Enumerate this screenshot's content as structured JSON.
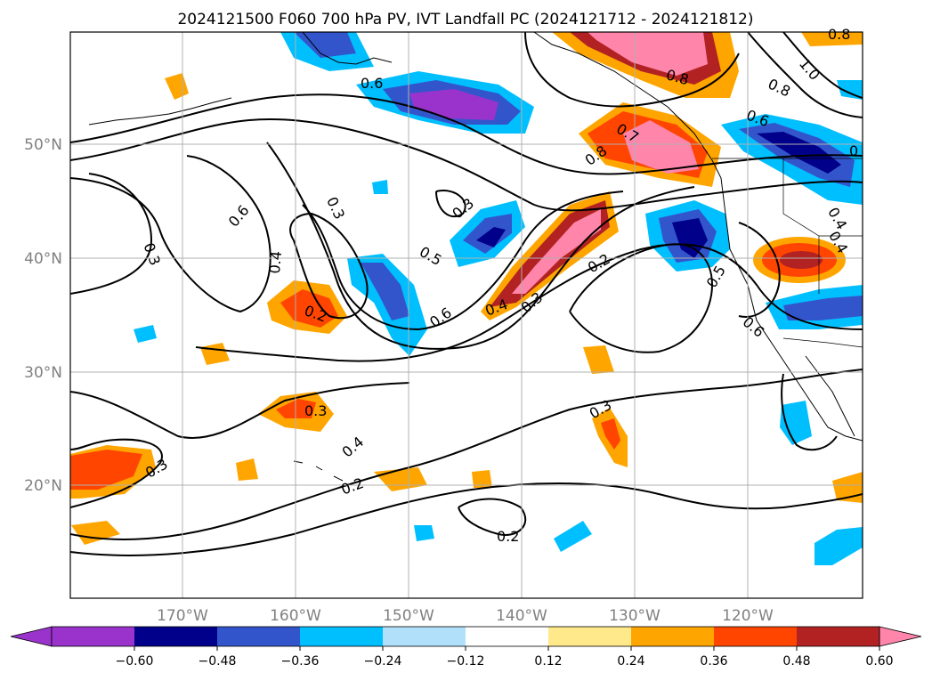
{
  "title": "2024121500 F060 700 hPa PV, IVT Landfall PC (2024121712 - 2024121812)",
  "map": {
    "lat_labels": [
      "50°N",
      "40°N",
      "30°N",
      "20°N"
    ],
    "lon_labels": [
      "170°W",
      "160°W",
      "150°W",
      "140°W",
      "130°W",
      "120°W"
    ]
  },
  "colorbar": {
    "tick_labels": [
      "−0.60",
      "−0.48",
      "−0.36",
      "−0.24",
      "−0.12",
      "0.12",
      "0.24",
      "0.36",
      "0.48",
      "0.60"
    ],
    "colors": [
      "#9933cc",
      "#00008b",
      "#3355cc",
      "#00bfff",
      "#b0e0fa",
      "#ffffff",
      "#ffe98a",
      "#ffa500",
      "#ff4500",
      "#b22222",
      "#ff85aa",
      "#ff85aa"
    ]
  },
  "contour_labels": [
    "0.6",
    "0.6",
    "0.3",
    "0.3",
    "0.3",
    "0.4",
    "0.2",
    "0.5",
    "0.6",
    "0.4",
    "0.3",
    "0.2",
    "0.7",
    "0.8",
    "0.8",
    "0.8",
    "1.0",
    "0.6",
    "0.5",
    "0.6",
    "0.4",
    "0.4",
    "0.3",
    "0.3",
    "0.4",
    "0.3",
    "0.2",
    "0.2",
    "0.8",
    "0"
  ]
}
